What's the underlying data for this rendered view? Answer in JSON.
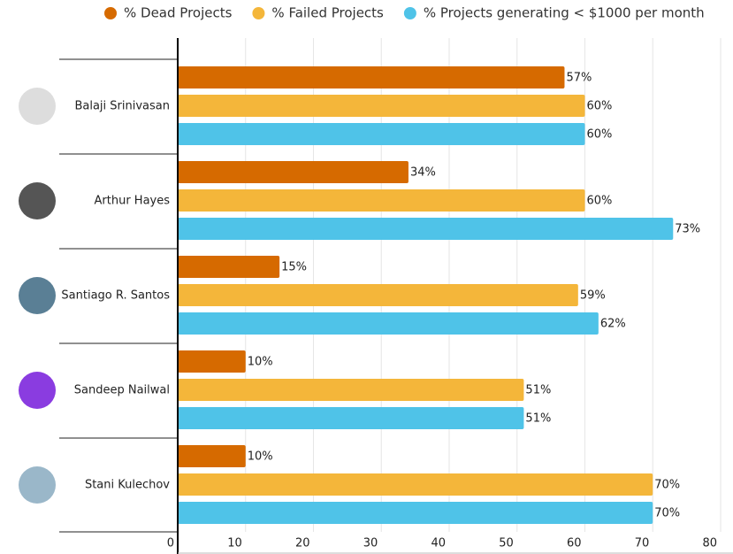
{
  "chart_data": {
    "type": "bar",
    "orientation": "horizontal",
    "categories": [
      "Balaji Srinivasan",
      "Arthur Hayes",
      "Santiago R. Santos",
      "Sandeep Nailwal",
      "Stani Kulechov"
    ],
    "series": [
      {
        "name": "% Dead Projects",
        "color": "#d66a00",
        "values": [
          57,
          34,
          15,
          10,
          10
        ],
        "value_labels": [
          "57%",
          "34%",
          "15%",
          "10%",
          "10%"
        ]
      },
      {
        "name": "% Failed Projects",
        "color": "#f4b63a",
        "values": [
          60,
          60,
          59,
          51,
          70
        ],
        "value_labels": [
          "60%",
          "60%",
          "59%",
          "51%",
          "70%"
        ]
      },
      {
        "name": "% Projects generating < $1000 per month",
        "color": "#4fc3e8",
        "values": [
          60,
          73,
          62,
          51,
          70
        ],
        "value_labels": [
          "60%",
          "73%",
          "62%",
          "51%",
          "70%"
        ]
      }
    ],
    "xlim": [
      0,
      80
    ],
    "xticks": [
      0,
      10,
      20,
      30,
      40,
      50,
      60,
      70,
      80
    ],
    "grid": true,
    "legend": "top"
  }
}
